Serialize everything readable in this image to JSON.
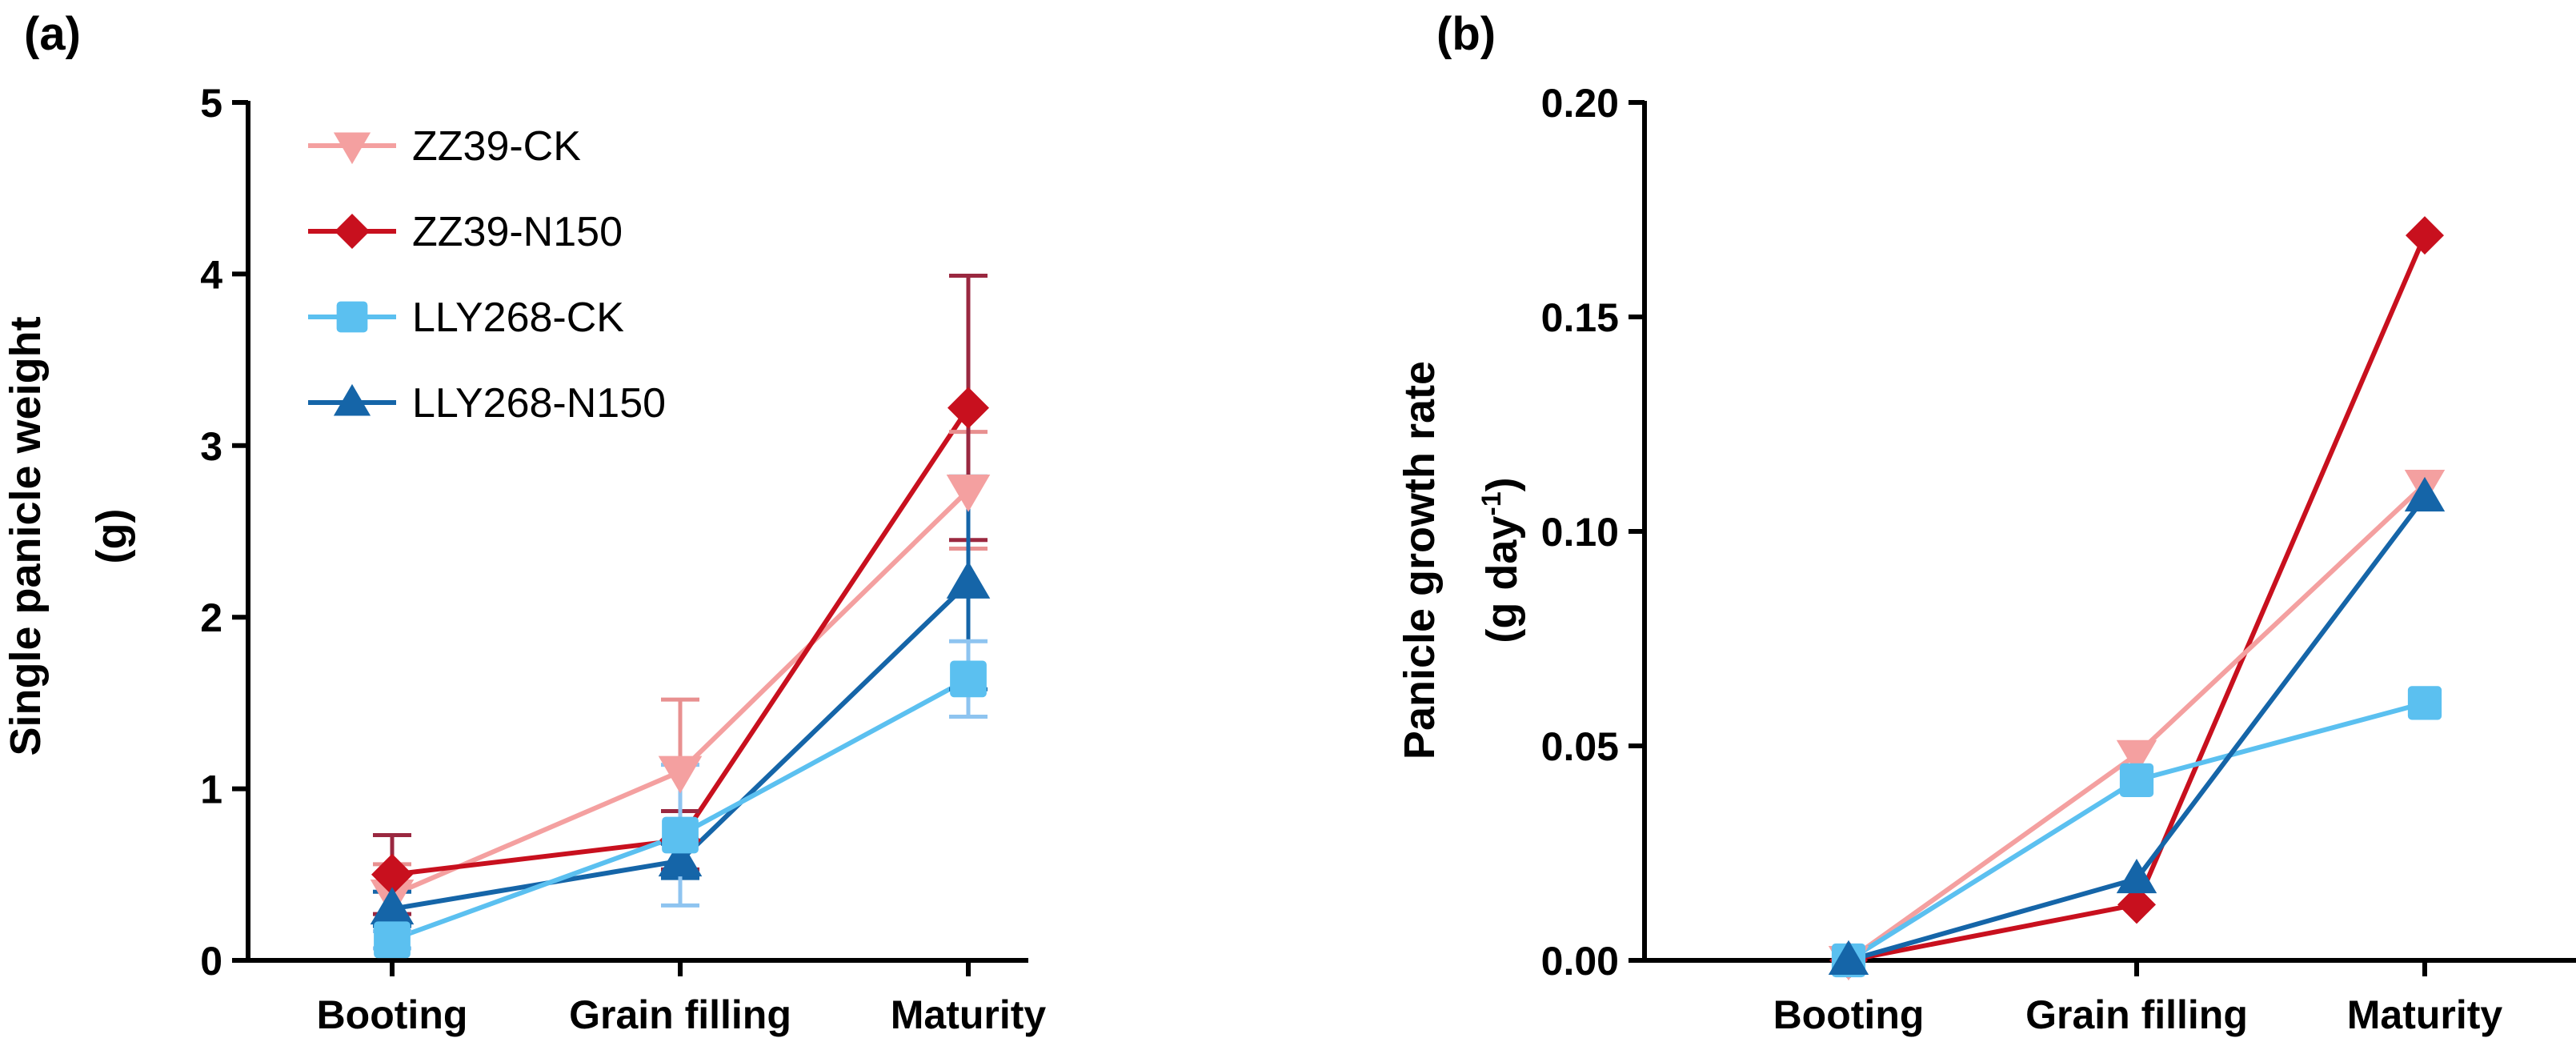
{
  "panels": [
    {
      "panel_label": "(a)",
      "ylabel_line1": "Single panicle weight",
      "ylabel_line2": "(g)"
    },
    {
      "panel_label": "(b)",
      "ylabel_line1": "Panicle growth rate",
      "ylabel_line2_main": "(g day",
      "ylabel_line2_sup": "-1",
      "ylabel_line2_end": ")"
    }
  ],
  "chart_data": [
    {
      "type": "line",
      "panel": "(a)",
      "title": "",
      "xlabel": "",
      "ylabel": "Single panicle weight (g)",
      "categories": [
        "Booting",
        "Grain filling",
        "Maturity"
      ],
      "ylim": [
        0,
        5
      ],
      "yticks": [
        "0",
        "1",
        "2",
        "3",
        "4",
        "5"
      ],
      "legend_position": "top-left",
      "series": [
        {
          "name": "ZZ39-CK",
          "marker": "triangle-down",
          "color": "#F4A0A0",
          "values": [
            0.38,
            1.1,
            2.74
          ],
          "errors": [
            0.18,
            0.42,
            0.34
          ]
        },
        {
          "name": "ZZ39-N150",
          "marker": "diamond",
          "color": "#C8101E",
          "values": [
            0.5,
            0.7,
            3.22
          ],
          "errors": [
            0.23,
            0.17,
            0.77
          ]
        },
        {
          "name": "LLY268-CK",
          "marker": "square",
          "color": "#5BC0F0",
          "values": [
            0.12,
            0.73,
            1.64
          ],
          "errors": [
            0.05,
            0.41,
            0.22
          ]
        },
        {
          "name": "LLY268-N150",
          "marker": "triangle-up",
          "color": "#1565A8",
          "values": [
            0.3,
            0.58,
            2.2
          ],
          "errors": [
            0.1,
            0.1,
            0.62
          ]
        }
      ]
    },
    {
      "type": "line",
      "panel": "(b)",
      "title": "",
      "xlabel": "",
      "ylabel": "Panicle growth rate (g day-1)",
      "categories": [
        "Booting",
        "Grain filling",
        "Maturity"
      ],
      "ylim": [
        0,
        0.2
      ],
      "yticks": [
        "0.00",
        "0.05",
        "0.10",
        "0.15",
        "0.20"
      ],
      "series": [
        {
          "name": "ZZ39-CK",
          "marker": "triangle-down",
          "color": "#F4A0A0",
          "values": [
            0.0,
            0.048,
            0.111
          ]
        },
        {
          "name": "ZZ39-N150",
          "marker": "diamond",
          "color": "#C8101E",
          "values": [
            0.0,
            0.013,
            0.169
          ]
        },
        {
          "name": "LLY268-CK",
          "marker": "square",
          "color": "#5BC0F0",
          "values": [
            0.0,
            0.042,
            0.06
          ]
        },
        {
          "name": "LLY268-N150",
          "marker": "triangle-up",
          "color": "#1565A8",
          "values": [
            0.0,
            0.019,
            0.108
          ]
        }
      ]
    }
  ]
}
